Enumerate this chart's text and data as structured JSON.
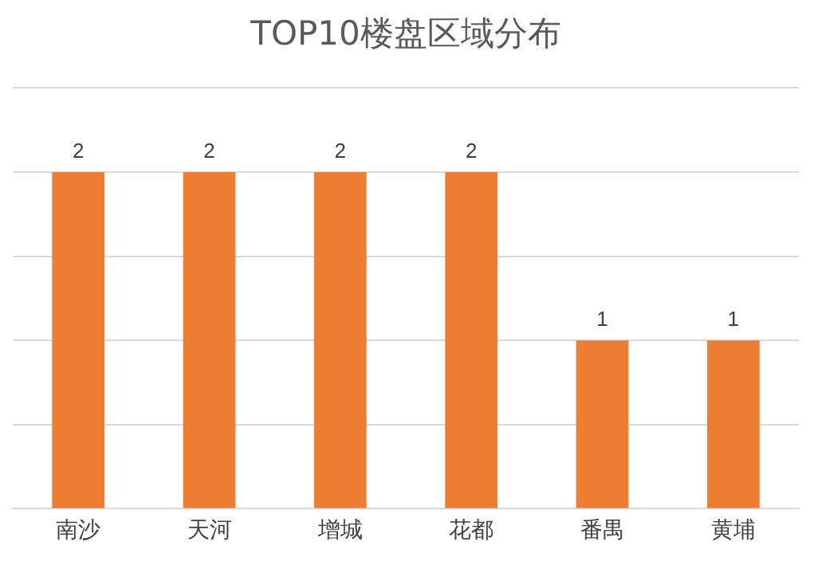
{
  "chart_data": {
    "type": "bar",
    "title": "TOP10楼盘区域分布",
    "categories": [
      "南沙",
      "天河",
      "增城",
      "花都",
      "番禺",
      "黄埔"
    ],
    "values": [
      2,
      2,
      2,
      2,
      1,
      1
    ],
    "color": "#ed7d31",
    "ylim": [
      0,
      2.5
    ],
    "yticks": [
      {
        "value": 0,
        "label": null
      },
      {
        "value": 0.5,
        "label": null
      },
      {
        "value": 1,
        "label": null
      },
      {
        "value": 1.5,
        "label": null
      },
      {
        "value": 2,
        "label": null
      },
      {
        "value": 2.5,
        "label": null
      }
    ],
    "tick_labels": "x",
    "grid": "y",
    "data_labels": true
  }
}
